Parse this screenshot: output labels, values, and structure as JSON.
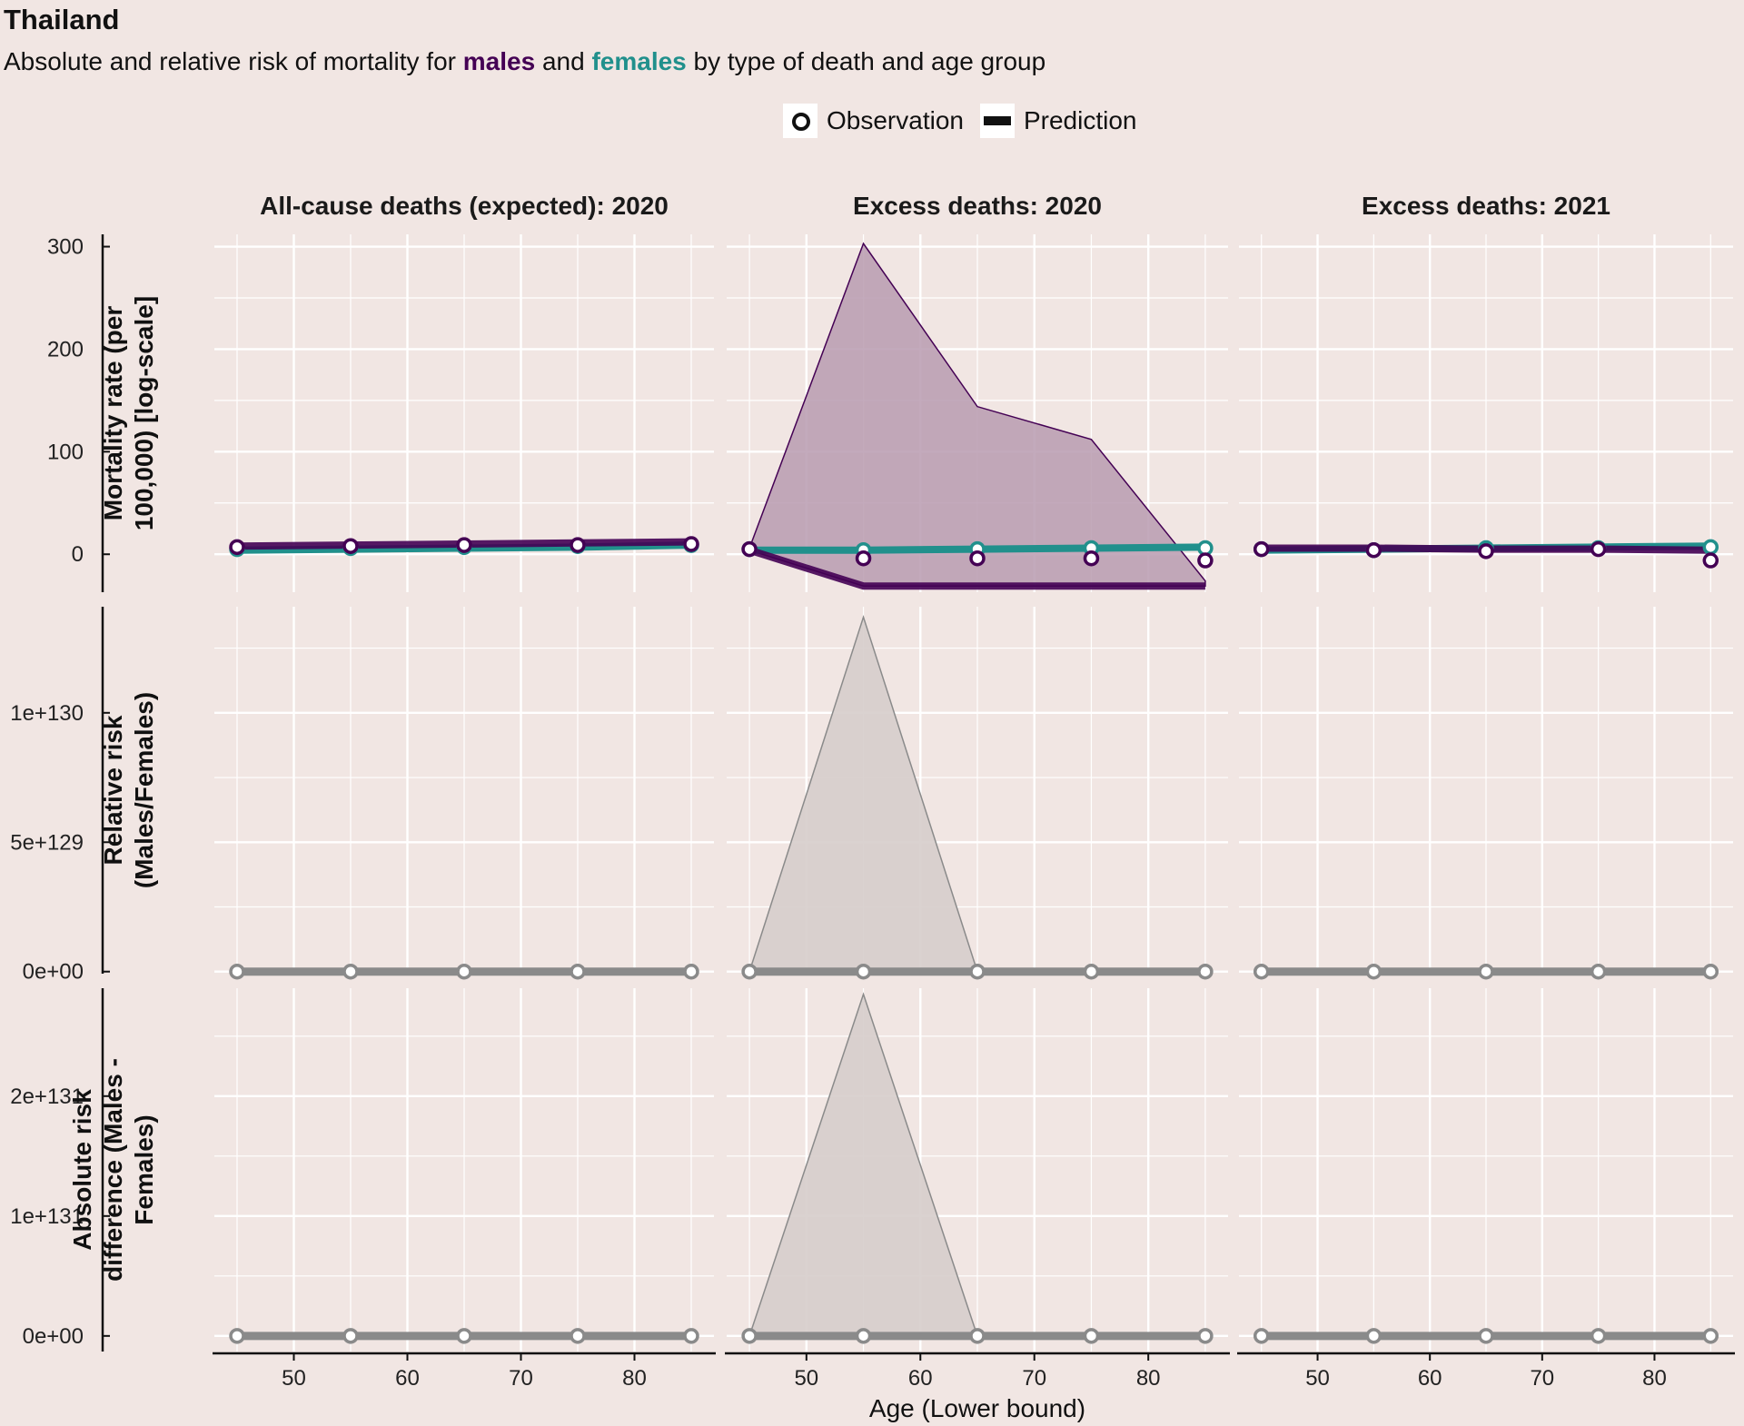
{
  "title": "Thailand",
  "subtitle": {
    "prefix": "Absolute and relative risk of mortality for ",
    "males": "males",
    "and": " and ",
    "females": "females",
    "suffix": " by type of death and age group"
  },
  "legend": {
    "observation": "Observation",
    "prediction": "Prediction"
  },
  "colors": {
    "males": "#440154",
    "females": "#21908c",
    "ratio": "#8a8a8a",
    "ribbon_males": "#b89bb0",
    "ribbon_ratio": "#d6cdcb",
    "background": "#f1e6e3",
    "grid": "#ffffff"
  },
  "chart_data": {
    "type": "line",
    "x": [
      45,
      55,
      65,
      75,
      85
    ],
    "xlabel": "Age (Lower bound)",
    "xticks": [
      50,
      60,
      70,
      80
    ],
    "xlim": [
      43,
      87
    ],
    "columns": [
      "All-cause deaths (expected): 2020",
      "Excess deaths: 2020",
      "Excess deaths: 2021"
    ],
    "rows": [
      {
        "ylabel": [
          "Mortality rate (per",
          "100,000) [log-scale]"
        ],
        "ylim": [
          -37,
          312
        ],
        "yticks": [
          {
            "value": 0,
            "label": "0"
          },
          {
            "value": 100,
            "label": "100"
          },
          {
            "value": 200,
            "label": "200"
          },
          {
            "value": 300,
            "label": "300"
          }
        ],
        "panels": [
          {
            "males_obs": [
              7,
              8,
              9,
              9,
              10
            ],
            "females_obs": [
              5,
              6,
              7,
              8,
              9
            ],
            "males_pred": [
              8,
              9,
              10,
              11,
              12
            ],
            "females_pred": [
              4,
              5,
              6,
              7,
              9
            ],
            "males_ribbon": null
          },
          {
            "males_obs": [
              5,
              -4,
              -4,
              -4,
              -6
            ],
            "females_obs": [
              5,
              4,
              5,
              6,
              6
            ],
            "males_pred": [
              4,
              -31,
              -31,
              -31,
              -31
            ],
            "females_pred": [
              4,
              4,
              5,
              6,
              7
            ],
            "males_ribbon": {
              "upper": [
                6,
                303,
                144,
                112,
                -26
              ],
              "lower": [
                4,
                -31,
                -31,
                -31,
                -31
              ]
            }
          },
          {
            "males_obs": [
              5,
              4,
              3,
              5,
              -6
            ],
            "females_obs": [
              5,
              4,
              6,
              6,
              7
            ],
            "males_pred": [
              6,
              6,
              5,
              5,
              4
            ],
            "females_pred": [
              4,
              5,
              6,
              7,
              8
            ],
            "males_ribbon": null
          }
        ]
      },
      {
        "ylabel": [
          "Relative risk",
          "(Males/Females)"
        ],
        "ylim": [
          -8e+127,
          1.41e+130
        ],
        "yticks": [
          {
            "value": 0,
            "label": "0e+00"
          },
          {
            "value": 5e+129,
            "label": "5e+129"
          },
          {
            "value": 1e+130,
            "label": "1e+130"
          }
        ],
        "panels": [
          {
            "obs": [
              0,
              0,
              0,
              0,
              0
            ],
            "pred": [
              0,
              0,
              0,
              0,
              0
            ],
            "ribbon": null
          },
          {
            "obs": [
              0,
              0,
              0,
              0,
              0
            ],
            "pred": [
              0,
              0,
              0,
              0,
              0
            ],
            "ribbon": {
              "upper": [
                0,
                1.37e+130,
                0,
                0,
                0
              ],
              "lower": [
                0,
                0,
                0,
                0,
                0
              ]
            }
          },
          {
            "obs": [
              0,
              0,
              0,
              0,
              0
            ],
            "pred": [
              0,
              0,
              0,
              0,
              0
            ],
            "ribbon": null
          }
        ]
      },
      {
        "ylabel": [
          "Absolute risk",
          "difference (Males -",
          "Females)"
        ],
        "ylim": [
          -1.3e+130,
          2.9e+131
        ],
        "yticks": [
          {
            "value": 0,
            "label": "0e+00"
          },
          {
            "value": 1e+131,
            "label": "1e+131"
          },
          {
            "value": 2e+131,
            "label": "2e+131"
          }
        ],
        "panels": [
          {
            "obs": [
              0,
              0,
              0,
              0,
              0
            ],
            "pred": [
              0,
              0,
              0,
              0,
              0
            ],
            "ribbon": null
          },
          {
            "obs": [
              0,
              0,
              0,
              0,
              0
            ],
            "pred": [
              0,
              0,
              0,
              0,
              0
            ],
            "ribbon": {
              "upper": [
                0,
                2.85e+131,
                0,
                0,
                0
              ],
              "lower": [
                0,
                0,
                0,
                0,
                0
              ]
            }
          },
          {
            "obs": [
              0,
              0,
              0,
              0,
              0
            ],
            "pred": [
              0,
              0,
              0,
              0,
              0
            ],
            "ribbon": null
          }
        ]
      }
    ]
  }
}
